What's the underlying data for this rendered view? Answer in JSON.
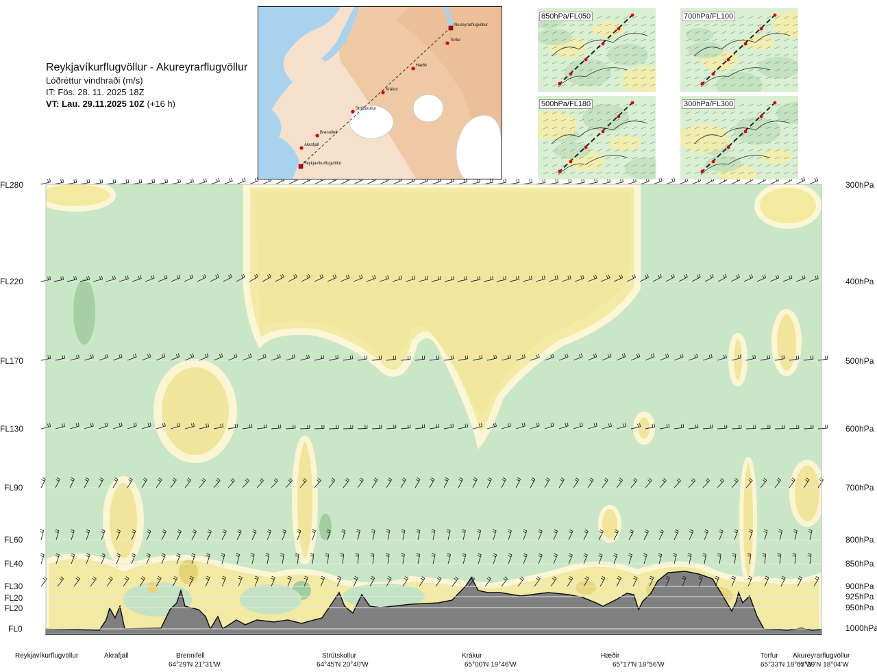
{
  "title": {
    "route": "Reykjavíkurflugvöllur - Akureyrarflugvöllur",
    "variable": "Lóðréttur vindhraði (m/s)",
    "issue_time": "IT: Fös. 28. 11. 2025 18Z",
    "valid_time_bold": "VT: Lau. 29.11.2025 10Z",
    "valid_time_offset": "(+16 h)"
  },
  "insets": [
    {
      "label": "850hPa/FL050"
    },
    {
      "label": "700hPa/FL100"
    },
    {
      "label": "500hPa/FL180"
    },
    {
      "label": "300hPa/FL300"
    }
  ],
  "map": {
    "waypoints": [
      "Akureyrarflugvöllur",
      "Torfur",
      "Hæðir",
      "Krákur",
      "Strútskollur",
      "Brennifell",
      "Akrafjall",
      "Reykjavíkurflugvöllur"
    ]
  },
  "chart_data": {
    "type": "heatmap",
    "title": "Lóðréttur vindhraði (m/s)",
    "left_axis": [
      "FL280",
      "FL220",
      "FL170",
      "FL130",
      "FL90",
      "FL60",
      "FL40",
      "FL30",
      "FL20",
      "FL20",
      "FL0"
    ],
    "right_axis": [
      "300hPa",
      "400hPa",
      "500hPa",
      "600hPa",
      "700hPa",
      "800hPa",
      "850hPa",
      "900hPa",
      "925hPa",
      "950hPa",
      "1000hPa"
    ],
    "pressure_levels_hpa": [
      300,
      400,
      500,
      600,
      700,
      800,
      850,
      900,
      925,
      950,
      1000
    ],
    "x_stations": [
      {
        "name": "Reykjavíkurflugvöllur",
        "coord": ""
      },
      {
        "name": "Akrafjall",
        "coord": ""
      },
      {
        "name": "Brennifell",
        "coord": "64°29'N 21°31'W"
      },
      {
        "name": "Strútskollur",
        "coord": "64°45'N 20°40'W"
      },
      {
        "name": "Krákur",
        "coord": "65°00'N 19°46'W"
      },
      {
        "name": "Hæðir",
        "coord": "65°17'N 18°56'W"
      },
      {
        "name": "Torfur",
        "coord": "65°33'N 18°07'W"
      },
      {
        "name": "Akureyrarflugvöllur",
        "coord": "65°39'N 18°04'W"
      }
    ],
    "fill_colors": {
      "strong_down": "#a3cca3",
      "down": "#c4e3c4",
      "weak_down": "#e6f4e0",
      "weak_up": "#fdfad8",
      "up": "#f5eda8",
      "strong_up": "#ead77a",
      "terrain": "#808080"
    }
  }
}
